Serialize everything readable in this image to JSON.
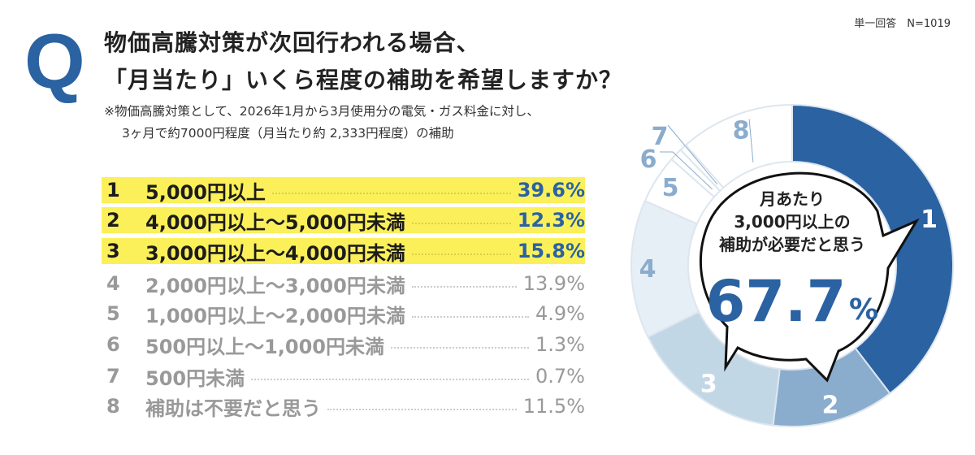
{
  "header": {
    "q_mark": "Q",
    "title_line1": "物価高騰対策が次回行われる場合、",
    "title_line2": "「月当たり」いくら程度の補助を希望しますか？",
    "note_line1": "※物価高騰対策として、2026年1月から3月使用分の電気・ガス料金に対し、",
    "note_line2": "3ヶ月で約7000円程度（月当たり約 2,333円程度）の補助",
    "meta": "単一回答　N=1019"
  },
  "chart_data": {
    "type": "pie",
    "style": "donut",
    "categories": [
      "5,000円以上",
      "4,000円以上～5,000円未満",
      "3,000円以上～4,000円未満",
      "2,000円以上～3,000円未満",
      "1,000円以上～2,000円未満",
      "500円以上～1,000円未満",
      "500円未満",
      "補助は不要だと思う"
    ],
    "numbers": [
      "1",
      "2",
      "3",
      "4",
      "5",
      "6",
      "7",
      "8"
    ],
    "values": [
      39.6,
      12.3,
      15.8,
      13.9,
      4.9,
      1.3,
      0.7,
      11.5
    ],
    "value_labels": [
      "39.6%",
      "12.3%",
      "15.8%",
      "13.9%",
      "4.9%",
      "1.3%",
      "0.7%",
      "11.5%"
    ],
    "highlighted": [
      1,
      2,
      3
    ],
    "colors": [
      "#2a62a2",
      "#8aaccd",
      "#c2d7e6",
      "#e6eef6",
      "#ffffff",
      "#ffffff",
      "#ffffff",
      "#ffffff"
    ],
    "start": "top, clockwise",
    "callout": {
      "line1": "月あたり",
      "line2": "3,000円以上の",
      "line3": "補助が必要だと思う",
      "value": "67.7",
      "unit": "%"
    }
  },
  "colors": {
    "accent": "#2a62a2",
    "highlight": "#fbf05a"
  }
}
